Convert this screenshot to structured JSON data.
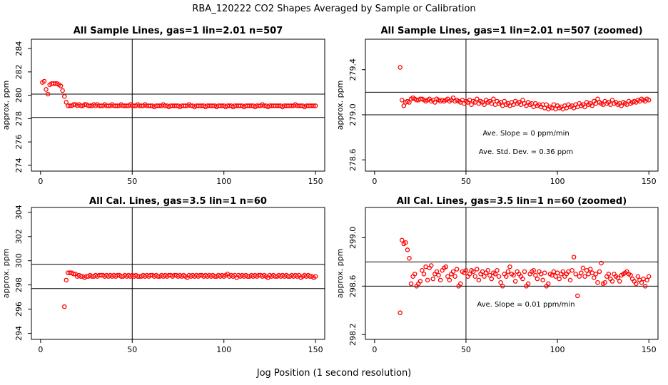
{
  "title": "RBA_120222  CO2 Shapes Averaged by Sample or Calibration",
  "shared_xlabel": "Jog Position (1 second resolution)",
  "colors": {
    "points": "#ff0000",
    "axes": "#000000",
    "background": "#ffffff"
  },
  "chart_data": [
    {
      "type": "scatter",
      "title": "All Sample Lines, gas=1 lin=2.01 n=507",
      "ylabel": "approx. ppm",
      "xlim": [
        -5,
        155
      ],
      "ylim": [
        273.5,
        284.8
      ],
      "xticks": [
        0,
        50,
        100,
        150
      ],
      "yticks": [
        274,
        276,
        278,
        280,
        282,
        284
      ],
      "vline": 50,
      "hlines": [
        280.1,
        278.1
      ],
      "annotations": [],
      "series": [
        {
          "x_start": 1,
          "x_end": 150,
          "y": [
            281.1,
            281.2,
            280.5,
            280.1,
            280.9,
            281.0,
            281.0,
            281.0,
            281.0,
            280.9,
            280.8,
            280.4,
            279.9,
            279.4,
            279.1,
            279.1,
            279.1,
            279.2,
            279.2,
            279.1,
            279.2,
            279.1,
            279.1,
            279.2,
            279.2,
            279.1,
            279.1,
            279.1,
            279.2,
            279.1,
            279.2,
            279.1,
            279.1,
            279.1,
            279.2,
            279.1,
            279.1,
            279.1,
            279.2,
            279.1,
            279.1,
            279.1,
            279.1,
            279.2,
            279.1,
            279.1,
            279.1,
            279.1,
            279.2,
            279.1,
            279.1,
            279.1,
            279.2,
            279.1,
            279.1,
            279.1,
            279.2,
            279.1,
            279.1,
            279.1,
            279.1,
            279.0,
            279.1,
            279.1,
            279.1,
            279.1,
            279.2,
            279.1,
            279.1,
            279.0,
            279.1,
            279.1,
            279.1,
            279.1,
            279.1,
            279.0,
            279.1,
            279.1,
            279.1,
            279.1,
            279.2,
            279.1,
            279.1,
            279.0,
            279.1,
            279.1,
            279.1,
            279.1,
            279.1,
            279.0,
            279.1,
            279.1,
            279.1,
            279.1,
            279.1,
            279.0,
            279.1,
            279.1,
            279.1,
            279.1,
            279.0,
            279.1,
            279.1,
            279.1,
            279.0,
            279.1,
            279.1,
            279.1,
            279.1,
            279.1,
            279.0,
            279.1,
            279.1,
            279.1,
            279.1,
            279.1,
            279.0,
            279.1,
            279.1,
            279.1,
            279.2,
            279.1,
            279.1,
            279.0,
            279.1,
            279.1,
            279.1,
            279.1,
            279.1,
            279.1,
            279.1,
            279.0,
            279.1,
            279.1,
            279.1,
            279.1,
            279.1,
            279.1,
            279.2,
            279.1,
            279.1,
            279.1,
            279.1,
            279.0,
            279.1,
            279.1,
            279.1,
            279.1,
            279.1,
            279.1
          ]
        }
      ]
    },
    {
      "type": "scatter",
      "title": "All Sample Lines, gas=1 lin=2.01 n=507 (zoomed)",
      "ylabel": "approx. ppm",
      "xlim": [
        -5,
        155
      ],
      "ylim": [
        278.5,
        279.67
      ],
      "xticks": [
        0,
        50,
        100,
        150
      ],
      "yticks": [
        278.6,
        279.0,
        279.4
      ],
      "ytick_labels": [
        "278.6",
        "279.0",
        "279.4"
      ],
      "vline": 50,
      "hlines": [
        279.2,
        279.0
      ],
      "annotations": [
        "Ave. Slope =  0  ppm/min",
        "Ave. Std. Dev. =  0.36  ppm"
      ],
      "series": [
        {
          "x_start": 14,
          "x_end": 150,
          "y": [
            279.42,
            279.13,
            279.08,
            279.11,
            279.12,
            279.11,
            279.14,
            279.15,
            279.14,
            279.13,
            279.13,
            279.14,
            279.14,
            279.13,
            279.12,
            279.13,
            279.14,
            279.12,
            279.13,
            279.11,
            279.14,
            279.13,
            279.12,
            279.13,
            279.12,
            279.13,
            279.14,
            279.12,
            279.13,
            279.15,
            279.12,
            279.13,
            279.12,
            279.11,
            279.13,
            279.1,
            279.12,
            279.11,
            279.13,
            279.09,
            279.12,
            279.11,
            279.14,
            279.1,
            279.12,
            279.11,
            279.09,
            279.13,
            279.11,
            279.12,
            279.1,
            279.14,
            279.09,
            279.12,
            279.1,
            279.11,
            279.08,
            279.12,
            279.09,
            279.1,
            279.08,
            279.11,
            279.09,
            279.12,
            279.1,
            279.11,
            279.09,
            279.13,
            279.1,
            279.08,
            279.11,
            279.09,
            279.1,
            279.07,
            279.1,
            279.08,
            279.09,
            279.07,
            279.09,
            279.06,
            279.09,
            279.05,
            279.07,
            279.06,
            279.09,
            279.05,
            279.08,
            279.06,
            279.07,
            279.05,
            279.08,
            279.06,
            279.09,
            279.07,
            279.08,
            279.06,
            279.09,
            279.07,
            279.1,
            279.08,
            279.09,
            279.07,
            279.11,
            279.09,
            279.1,
            279.08,
            279.12,
            279.1,
            279.14,
            279.11,
            279.1,
            279.09,
            279.12,
            279.1,
            279.11,
            279.09,
            279.13,
            279.1,
            279.11,
            279.09,
            279.1,
            279.08,
            279.11,
            279.1,
            279.09,
            279.12,
            279.1,
            279.11,
            279.12,
            279.11,
            279.13,
            279.12,
            279.14,
            279.13,
            279.12,
            279.14,
            279.13
          ]
        }
      ]
    },
    {
      "type": "scatter",
      "title": "All Cal. Lines, gas=3.5 lin=1 n=60",
      "ylabel": "approx. ppm",
      "xlim": [
        -5,
        155
      ],
      "ylim": [
        293.5,
        304.4
      ],
      "xticks": [
        0,
        50,
        100,
        150
      ],
      "yticks": [
        294,
        296,
        298,
        300,
        302,
        304
      ],
      "vline": 50,
      "hlines": [
        299.7,
        297.7
      ],
      "annotations": [],
      "series": [
        {
          "x_start": 13,
          "x_end": 150,
          "y": [
            296.2,
            298.4,
            299.0,
            299.0,
            299.0,
            298.9,
            298.9,
            298.7,
            298.8,
            298.7,
            298.7,
            298.6,
            298.7,
            298.7,
            298.8,
            298.7,
            298.7,
            298.8,
            298.7,
            298.8,
            298.8,
            298.8,
            298.7,
            298.8,
            298.7,
            298.8,
            298.7,
            298.8,
            298.7,
            298.8,
            298.8,
            298.7,
            298.7,
            298.8,
            298.7,
            298.8,
            298.7,
            298.8,
            298.7,
            298.8,
            298.7,
            298.7,
            298.7,
            298.8,
            298.7,
            298.8,
            298.7,
            298.8,
            298.8,
            298.7,
            298.8,
            298.7,
            298.7,
            298.8,
            298.7,
            298.8,
            298.7,
            298.8,
            298.8,
            298.7,
            298.8,
            298.8,
            298.7,
            298.8,
            298.7,
            298.8,
            298.7,
            298.6,
            298.8,
            298.7,
            298.8,
            298.7,
            298.8,
            298.7,
            298.8,
            298.8,
            298.7,
            298.8,
            298.7,
            298.8,
            298.7,
            298.8,
            298.7,
            298.7,
            298.8,
            298.7,
            298.8,
            298.7,
            298.8,
            298.9,
            298.7,
            298.8,
            298.7,
            298.8,
            298.6,
            298.8,
            298.7,
            298.8,
            298.7,
            298.8,
            298.7,
            298.7,
            298.8,
            298.7,
            298.8,
            298.7,
            298.8,
            298.8,
            298.7,
            298.8,
            298.7,
            298.6,
            298.8,
            298.7,
            298.8,
            298.7,
            298.7,
            298.8,
            298.7,
            298.8,
            298.7,
            298.8,
            298.7,
            298.7,
            298.8,
            298.7,
            298.8,
            298.7,
            298.8,
            298.6,
            298.7,
            298.8,
            298.7,
            298.8,
            298.7,
            298.7,
            298.6,
            298.7
          ]
        }
      ]
    },
    {
      "type": "scatter",
      "title": "All Cal. Lines, gas=3.5 lin=1 n=60 (zoomed)",
      "ylabel": "approx. ppm",
      "xlim": [
        -5,
        155
      ],
      "ylim": [
        298.16,
        299.25
      ],
      "xticks": [
        0,
        50,
        100,
        150
      ],
      "yticks": [
        298.2,
        298.6,
        299.0
      ],
      "ytick_labels": [
        "298.2",
        "298.6",
        "299.0"
      ],
      "vline": 50,
      "hlines": [
        298.8,
        298.6
      ],
      "annotations": [
        "Ave. Slope =  0.01  ppm/min"
      ],
      "series": [
        {
          "x_start": 14,
          "x_end": 150,
          "y": [
            298.38,
            298.98,
            298.95,
            298.96,
            298.9,
            298.83,
            298.62,
            298.68,
            298.7,
            298.6,
            298.62,
            298.64,
            298.73,
            298.7,
            298.76,
            298.65,
            298.75,
            298.77,
            298.66,
            298.7,
            298.72,
            298.69,
            298.65,
            298.73,
            298.75,
            298.76,
            298.68,
            298.65,
            298.7,
            298.72,
            298.68,
            298.74,
            298.6,
            298.62,
            298.72,
            298.71,
            298.73,
            298.68,
            298.7,
            298.73,
            298.72,
            298.68,
            298.74,
            298.65,
            298.7,
            298.72,
            298.68,
            298.71,
            298.73,
            298.69,
            298.66,
            298.71,
            298.7,
            298.73,
            298.68,
            298.63,
            298.6,
            298.7,
            298.68,
            298.72,
            298.76,
            298.7,
            298.69,
            298.64,
            298.72,
            298.7,
            298.68,
            298.66,
            298.72,
            298.6,
            298.62,
            298.7,
            298.72,
            298.73,
            298.69,
            298.66,
            298.72,
            298.7,
            298.65,
            298.71,
            298.6,
            298.62,
            298.7,
            298.69,
            298.72,
            298.68,
            298.71,
            298.66,
            298.7,
            298.72,
            298.68,
            298.7,
            298.72,
            298.65,
            298.73,
            298.84,
            298.7,
            298.52,
            298.68,
            298.71,
            298.75,
            298.68,
            298.73,
            298.7,
            298.74,
            298.71,
            298.67,
            298.7,
            298.63,
            298.72,
            298.79,
            298.62,
            298.63,
            298.68,
            298.7,
            298.66,
            298.64,
            298.7,
            298.68,
            298.67,
            298.64,
            298.69,
            298.7,
            298.71,
            298.72,
            298.7,
            298.69,
            298.66,
            298.64,
            298.62,
            298.68,
            298.65,
            298.63,
            298.66,
            298.6,
            298.65,
            298.68
          ]
        }
      ]
    }
  ]
}
